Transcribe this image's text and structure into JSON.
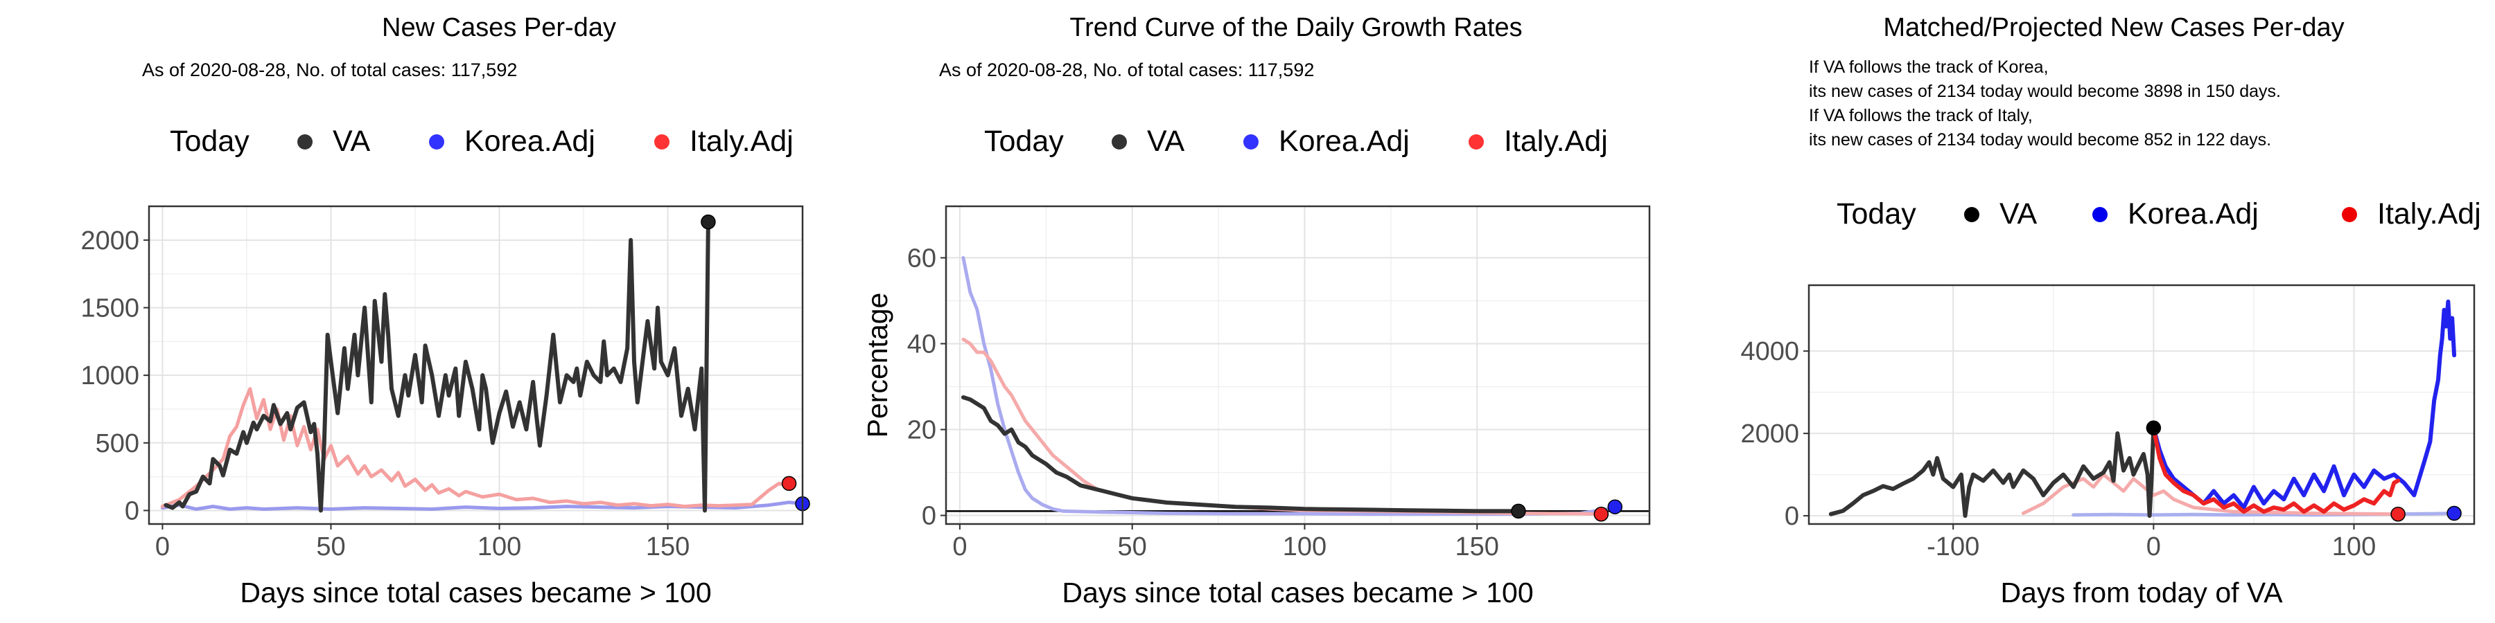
{
  "chart_data": [
    {
      "type": "line",
      "title": "New Cases Per-day",
      "subtitle": "As of 2020-08-28, No. of total cases: 117,592",
      "xlabel": "Days since total cases became > 100",
      "ylabel": "",
      "xlim": [
        -4,
        190
      ],
      "ylim": [
        -100,
        2250
      ],
      "x_ticks": [
        0,
        50,
        100,
        150
      ],
      "y_ticks": [
        0,
        500,
        1000,
        1500,
        2000
      ],
      "grid": true,
      "legend": {
        "position": "top",
        "title": "Today",
        "entries": [
          "VA",
          "Korea.Adj",
          "Italy.Adj"
        ]
      },
      "series": [
        {
          "name": "VA",
          "color": "#333333",
          "x": [
            1,
            3,
            5,
            6,
            8,
            10,
            12,
            14,
            15,
            17,
            18,
            20,
            22,
            24,
            25,
            27,
            28,
            30,
            32,
            33,
            35,
            37,
            38,
            40,
            42,
            44,
            45,
            46,
            47,
            48,
            49,
            50,
            52,
            54,
            55,
            57,
            58,
            60,
            62,
            63,
            65,
            66,
            67,
            68,
            70,
            72,
            73,
            75,
            77,
            78,
            80,
            82,
            84,
            85,
            87,
            88,
            90,
            92,
            94,
            95,
            96,
            98,
            100,
            102,
            104,
            106,
            108,
            110,
            111,
            112,
            114,
            116,
            118,
            120,
            122,
            123,
            124,
            126,
            128,
            130,
            131,
            132,
            134,
            136,
            138,
            139,
            140,
            141,
            142,
            144,
            146,
            147,
            148,
            150,
            152,
            154,
            156,
            158,
            160,
            161,
            162
          ],
          "y": [
            40,
            20,
            60,
            30,
            120,
            140,
            250,
            200,
            380,
            330,
            260,
            450,
            420,
            580,
            500,
            650,
            600,
            700,
            660,
            780,
            640,
            720,
            600,
            760,
            800,
            580,
            640,
            420,
            0,
            500,
            1300,
            1100,
            720,
            1200,
            900,
            1300,
            1000,
            1500,
            800,
            1550,
            1100,
            1600,
            1300,
            900,
            700,
            1000,
            850,
            1150,
            800,
            1220,
            1000,
            700,
            1000,
            850,
            1050,
            700,
            1100,
            900,
            600,
            1000,
            900,
            500,
            720,
            880,
            620,
            800,
            600,
            950,
            700,
            480,
            850,
            1300,
            800,
            1000,
            950,
            1050,
            850,
            1100,
            1000,
            950,
            1250,
            1000,
            1050,
            950,
            1200,
            2000,
            1100,
            800,
            1000,
            1400,
            1050,
            1500,
            1100,
            1000,
            1200,
            700,
            900,
            600,
            1050,
            0,
            2134
          ],
          "today": [
            162,
            2134
          ]
        },
        {
          "name": "Korea.Adj",
          "color": "#9999ee",
          "x": [
            0,
            5,
            10,
            15,
            20,
            25,
            30,
            40,
            50,
            60,
            70,
            80,
            90,
            100,
            110,
            120,
            130,
            140,
            150,
            160,
            170,
            180,
            186,
            190
          ],
          "y": [
            20,
            40,
            10,
            30,
            10,
            20,
            10,
            20,
            10,
            20,
            15,
            10,
            25,
            15,
            20,
            30,
            25,
            20,
            30,
            25,
            20,
            40,
            60,
            50
          ],
          "today": [
            190,
            50
          ]
        },
        {
          "name": "Italy.Adj",
          "color": "#f5a0a0",
          "x": [
            0,
            5,
            10,
            15,
            18,
            20,
            22,
            24,
            26,
            28,
            30,
            32,
            34,
            36,
            38,
            40,
            42,
            44,
            46,
            48,
            50,
            52,
            55,
            58,
            60,
            62,
            65,
            68,
            70,
            72,
            75,
            78,
            80,
            82,
            85,
            88,
            90,
            95,
            100,
            105,
            110,
            115,
            120,
            125,
            130,
            135,
            140,
            145,
            150,
            155,
            160,
            165,
            170,
            175,
            180,
            183,
            186
          ],
          "y": [
            30,
            80,
            180,
            300,
            380,
            550,
            620,
            780,
            900,
            680,
            820,
            600,
            750,
            520,
            700,
            480,
            620,
            450,
            600,
            380,
            480,
            330,
            400,
            270,
            330,
            250,
            300,
            220,
            280,
            180,
            230,
            150,
            190,
            130,
            160,
            110,
            140,
            100,
            120,
            80,
            90,
            60,
            70,
            50,
            60,
            40,
            50,
            35,
            45,
            30,
            40,
            35,
            40,
            45,
            150,
            200,
            180
          ],
          "today": [
            186,
            200
          ]
        }
      ]
    },
    {
      "type": "line",
      "title": "Trend Curve of the Daily Growth Rates",
      "subtitle": "As of 2020-08-28, No. of total cases: 117,592",
      "xlabel": "Days since total cases became > 100",
      "ylabel": "Percentage",
      "xlim": [
        -4,
        200
      ],
      "ylim": [
        -2,
        72
      ],
      "x_ticks": [
        0,
        50,
        100,
        150
      ],
      "y_ticks": [
        0,
        20,
        40,
        60
      ],
      "grid": true,
      "hline": 1,
      "legend": {
        "position": "top",
        "title": "Today",
        "entries": [
          "VA",
          "Korea.Adj",
          "Italy.Adj"
        ]
      },
      "series": [
        {
          "name": "VA",
          "color": "#333333",
          "x": [
            1,
            3,
            5,
            7,
            9,
            11,
            13,
            15,
            17,
            19,
            21,
            23,
            25,
            28,
            31,
            35,
            40,
            45,
            50,
            55,
            60,
            70,
            80,
            90,
            100,
            110,
            120,
            130,
            140,
            150,
            160,
            162
          ],
          "y": [
            27.5,
            27,
            26,
            25,
            22,
            21,
            19,
            20,
            17,
            16,
            14,
            13,
            12,
            10,
            9,
            7,
            6,
            5,
            4,
            3.5,
            3,
            2.5,
            2,
            1.8,
            1.5,
            1.4,
            1.3,
            1.2,
            1.1,
            1,
            1,
            1
          ],
          "today": [
            162,
            1
          ]
        },
        {
          "name": "Korea.Adj",
          "color": "#aaaaf0",
          "x": [
            1,
            3,
            5,
            7,
            9,
            11,
            13,
            15,
            17,
            19,
            21,
            24,
            27,
            30,
            40,
            60,
            80,
            100,
            120,
            140,
            160,
            180,
            188,
            190
          ],
          "y": [
            60,
            52,
            48,
            40,
            34,
            26,
            20,
            15,
            10,
            6,
            4,
            2.5,
            1.5,
            1,
            0.8,
            0.5,
            0.4,
            0.4,
            0.3,
            0.3,
            0.3,
            0.5,
            1.5,
            2
          ],
          "today": [
            190,
            2
          ]
        },
        {
          "name": "Italy.Adj",
          "color": "#f5aaaa",
          "x": [
            1,
            3,
            5,
            7,
            9,
            11,
            13,
            15,
            17,
            19,
            21,
            23,
            25,
            27,
            30,
            33,
            36,
            40,
            45,
            50,
            60,
            70,
            80,
            90,
            100,
            120,
            140,
            160,
            180,
            186
          ],
          "y": [
            41,
            40,
            38,
            38,
            36,
            33,
            30,
            28,
            25,
            22,
            20,
            18,
            16,
            14,
            12,
            10,
            8,
            6,
            5,
            4,
            3,
            2.5,
            2,
            1.5,
            1.2,
            1,
            0.8,
            0.5,
            0.4,
            0.3
          ],
          "today": [
            186,
            0.3
          ]
        }
      ]
    },
    {
      "type": "line",
      "title": "Matched/Projected New Cases Per-day",
      "subtitle": "If VA follows the track of Korea,\nits new cases of 2134 today would become 3898 in 150 days.\nIf VA follows the track of Italy,\nits new cases of 2134 today would become 852 in 122 days.",
      "subtitle_lines": [
        "If VA follows the track of Korea,",
        "its new cases of 2134 today would become 3898 in 150 days.",
        "If VA follows the track of Italy,",
        "its new cases of 2134 today would become 852 in 122 days."
      ],
      "xlabel": "Days from today of VA",
      "ylabel": "",
      "xlim": [
        -172,
        160
      ],
      "ylim": [
        -200,
        5600
      ],
      "x_ticks": [
        -100,
        0,
        100
      ],
      "y_ticks": [
        0,
        2000,
        4000
      ],
      "grid": true,
      "legend": {
        "position": "top",
        "title": "Today",
        "entries": [
          "VA",
          "Korea.Adj",
          "Italy.Adj"
        ]
      },
      "series": [
        {
          "name": "VA",
          "color": "#333333",
          "x": [
            -161,
            -155,
            -150,
            -145,
            -140,
            -135,
            -130,
            -125,
            -120,
            -115,
            -112,
            -110,
            -108,
            -105,
            -100,
            -96,
            -94,
            -92,
            -90,
            -85,
            -80,
            -75,
            -72,
            -70,
            -65,
            -60,
            -55,
            -50,
            -45,
            -40,
            -35,
            -30,
            -25,
            -22,
            -20,
            -18,
            -15,
            -12,
            -10,
            -8,
            -5,
            -3,
            -2,
            -1,
            0
          ],
          "y": [
            40,
            120,
            300,
            500,
            600,
            720,
            650,
            780,
            900,
            1100,
            1300,
            1000,
            1400,
            900,
            700,
            1000,
            0,
            700,
            1000,
            850,
            1100,
            800,
            1000,
            700,
            1100,
            900,
            500,
            800,
            1000,
            700,
            1200,
            900,
            1050,
            1300,
            850,
            2000,
            1100,
            1400,
            1000,
            1200,
            1500,
            1000,
            0,
            900,
            2134
          ],
          "today": [
            0,
            2134
          ]
        },
        {
          "name": "Korea.Adj",
          "color": "#aab0ee",
          "x": [
            -40,
            -20,
            0,
            20,
            40,
            60,
            80,
            100,
            120,
            140,
            150
          ],
          "y": [
            20,
            30,
            20,
            30,
            20,
            30,
            20,
            30,
            40,
            50,
            60
          ],
          "today": [
            150,
            60
          ]
        },
        {
          "name": "Italy.Adj",
          "color": "#f5aaaa",
          "x": [
            -65,
            -55,
            -50,
            -45,
            -40,
            -35,
            -30,
            -25,
            -20,
            -15,
            -10,
            -5,
            0,
            5,
            10,
            15,
            20,
            30,
            40,
            60,
            80,
            100,
            120,
            122
          ],
          "y": [
            60,
            300,
            500,
            700,
            800,
            900,
            700,
            1000,
            800,
            600,
            900,
            700,
            500,
            600,
            400,
            300,
            200,
            150,
            100,
            80,
            60,
            50,
            40,
            40
          ],
          "today": [
            122,
            40
          ]
        },
        {
          "name": "Korea.Adj projected",
          "color": "#2222ee",
          "x": [
            0,
            3,
            6,
            10,
            15,
            20,
            25,
            30,
            35,
            40,
            45,
            50,
            55,
            60,
            65,
            70,
            75,
            80,
            85,
            90,
            95,
            100,
            105,
            110,
            115,
            120,
            125,
            130,
            135,
            138,
            140,
            142,
            143,
            144,
            145,
            146,
            147,
            148,
            149,
            150
          ],
          "y": [
            2134,
            1600,
            1200,
            900,
            700,
            500,
            300,
            600,
            300,
            500,
            200,
            700,
            300,
            600,
            400,
            900,
            500,
            1000,
            600,
            1200,
            500,
            1000,
            700,
            1100,
            900,
            1000,
            800,
            500,
            1300,
            1800,
            2800,
            3300,
            3900,
            4300,
            5000,
            4600,
            5200,
            4300,
            4800,
            3898
          ],
          "today": [
            150,
            3898
          ]
        },
        {
          "name": "Italy.Adj projected",
          "color": "#ee2222",
          "x": [
            0,
            3,
            6,
            10,
            15,
            20,
            25,
            30,
            35,
            40,
            45,
            50,
            55,
            60,
            65,
            70,
            75,
            80,
            85,
            90,
            95,
            100,
            105,
            110,
            115,
            118,
            120,
            122
          ],
          "y": [
            2134,
            1400,
            1000,
            800,
            600,
            500,
            300,
            400,
            200,
            300,
            100,
            250,
            100,
            200,
            150,
            300,
            100,
            250,
            100,
            300,
            150,
            250,
            400,
            300,
            600,
            500,
            800,
            852
          ],
          "today": [
            122,
            852
          ]
        }
      ]
    }
  ]
}
